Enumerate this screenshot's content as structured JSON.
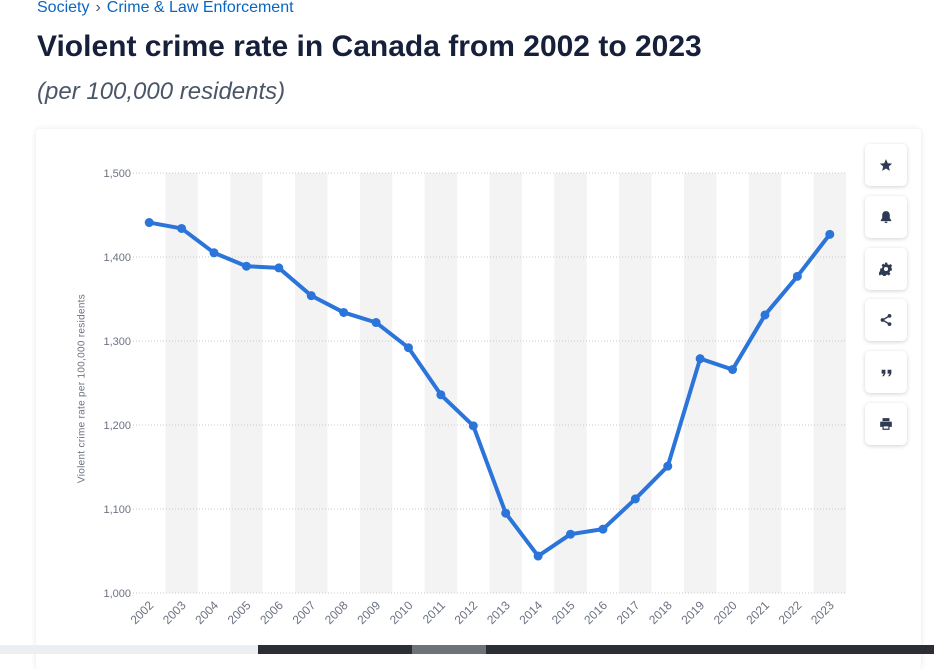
{
  "breadcrumb": {
    "items": [
      "Society",
      "Crime & Law Enforcement"
    ],
    "separator": "›"
  },
  "header": {
    "title": "Violent crime rate in Canada from 2002 to 2023",
    "subtitle": "(per 100,000 residents)"
  },
  "toolbar": {
    "icons": [
      "star-icon",
      "bell-icon",
      "gear-icon",
      "share-icon",
      "quote-icon",
      "print-icon"
    ]
  },
  "colors": {
    "line": "#2b74d9",
    "band": "#f3f3f3",
    "grid": "#c8c8c8",
    "tick": "#6b7280"
  },
  "chart_data": {
    "type": "line",
    "title": "Violent crime rate in Canada from 2002 to 2023",
    "subtitle": "(per 100,000 residents)",
    "xlabel": "",
    "ylabel": "Violent crime rate per 100,000 residents",
    "ylim": [
      1000,
      1500
    ],
    "yticks": [
      1000,
      1100,
      1200,
      1300,
      1400,
      1500
    ],
    "ytick_labels": [
      "1,000",
      "1,100",
      "1,200",
      "1,300",
      "1,400",
      "1,500"
    ],
    "grid": true,
    "legend": "none",
    "categories": [
      "2002",
      "2003",
      "2004",
      "2005",
      "2006",
      "2007",
      "2008",
      "2009",
      "2010",
      "2011",
      "2012",
      "2013",
      "2014",
      "2015",
      "2016",
      "2017",
      "2018",
      "2019",
      "2020",
      "2021",
      "2022",
      "2023"
    ],
    "values": [
      1441,
      1434,
      1405,
      1389,
      1387,
      1354,
      1334,
      1322,
      1292,
      1236,
      1199,
      1095,
      1044,
      1070,
      1076,
      1112,
      1151,
      1279,
      1266,
      1331,
      1377,
      1427
    ]
  }
}
